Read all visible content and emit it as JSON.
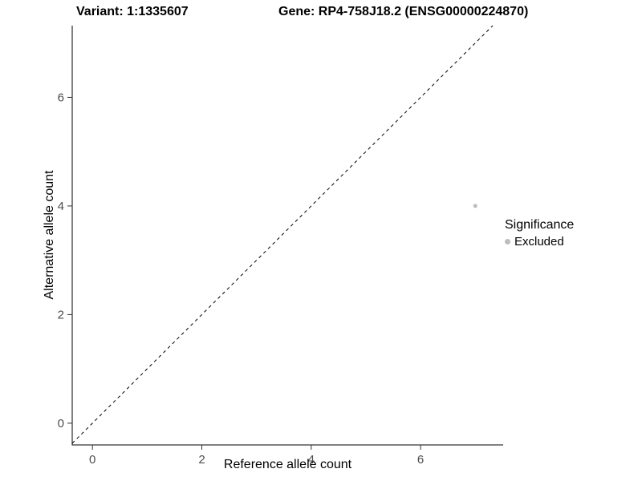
{
  "chart_data": {
    "type": "scatter",
    "title_left": "Variant: 1:1335607",
    "title_right": "Gene: RP4-758J18.2 (ENSG00000224870)",
    "xlabel": "Reference allele count",
    "ylabel": "Alternative allele count",
    "xlim": [
      -0.37,
      7.51
    ],
    "ylim": [
      -0.4,
      7.32
    ],
    "xticks": [
      0,
      2,
      4,
      6
    ],
    "yticks": [
      0,
      2,
      4,
      6
    ],
    "grid": false,
    "series": [
      {
        "name": "Excluded",
        "color": "#bdbdbd",
        "points": [
          {
            "x": 7,
            "y": 4
          }
        ]
      }
    ],
    "identity_line": {
      "slope": 1,
      "intercept": 0,
      "style": "dashed",
      "color": "#000000"
    },
    "legend": {
      "title": "Significance",
      "position": "right",
      "items": [
        {
          "label": "Excluded",
          "color": "#bdbdbd"
        }
      ]
    },
    "axis_color": "#000000",
    "tick_label_color": "#4d4d4d",
    "background_color": "#ffffff"
  }
}
